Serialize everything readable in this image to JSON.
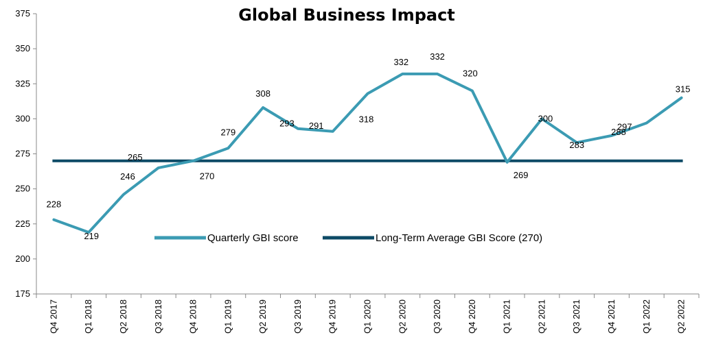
{
  "chart_data": {
    "type": "line",
    "title": "Global Business Impact",
    "xlabel": "",
    "ylabel": "",
    "categories": [
      "Q4 2017",
      "Q1 2018",
      "Q2 2018",
      "Q3 2018",
      "Q4 2018",
      "Q1 2019",
      "Q2 2019",
      "Q3 2019",
      "Q4 2019",
      "Q1 2020",
      "Q2 2020",
      "Q3 2020",
      "Q4 2020",
      "Q1 2021",
      "Q2 2021",
      "Q3 2021",
      "Q4 2021",
      "Q1 2022",
      "Q2 2022"
    ],
    "ylim": [
      175,
      375
    ],
    "yticks": [
      175,
      200,
      225,
      250,
      275,
      300,
      325,
      350,
      375
    ],
    "grid": false,
    "legend_position": "center",
    "series": [
      {
        "name": "Quarterly GBI score",
        "color": "#3b9bb3",
        "values": [
          228,
          219,
          246,
          265,
          270,
          279,
          308,
          293,
          291,
          318,
          332,
          332,
          320,
          269,
          300,
          283,
          288,
          297,
          315
        ],
        "labels": [
          "228",
          "219",
          "246",
          "265",
          "270",
          "279",
          "308",
          "293",
          "291",
          "318",
          "332",
          "332",
          "320",
          "269",
          "300",
          "283",
          "288",
          "297",
          "315"
        ]
      },
      {
        "name": "Long-Term Average GBI Score (270)",
        "color": "#0d4a66",
        "values": [
          270,
          270,
          270,
          270,
          270,
          270,
          270,
          270,
          270,
          270,
          270,
          270,
          270,
          270,
          270,
          270,
          270,
          270,
          270
        ]
      }
    ]
  }
}
